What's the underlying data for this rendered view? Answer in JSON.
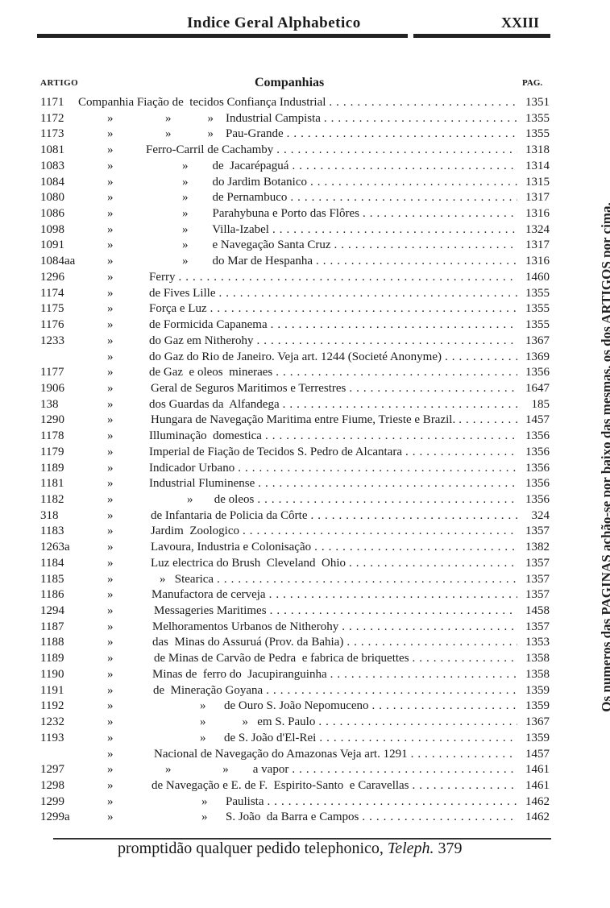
{
  "header": {
    "title": "Indice Geral Alphabetico",
    "page_number": "XXIII"
  },
  "columns": {
    "artigo": "ARTIGO",
    "title": "Companhias",
    "pag": "PAG."
  },
  "rows": [
    {
      "art": "1171",
      "ditto": "",
      "text": "Companhia Fiação de  tecidos Confiança Industrial",
      "page": "1351"
    },
    {
      "art": "1172",
      "ditto": "»",
      "text": "»            »    Industrial Campista",
      "page": "1355"
    },
    {
      "art": "1173",
      "ditto": "»",
      "text": "»            »    Pau-Grande",
      "page": "1355"
    },
    {
      "art": "1081",
      "ditto": "»",
      "text": "Ferro-Carril de Cachamby",
      "page": "1318"
    },
    {
      "art": "1083",
      "ditto": "»",
      "text": "»        de  Jacarépaguá",
      "page": "1314"
    },
    {
      "art": "1084",
      "ditto": "»",
      "text": "»        do Jardim Botanico",
      "page": "1315"
    },
    {
      "art": "1080",
      "ditto": "»",
      "text": "»        de Pernambuco",
      "page": "1317"
    },
    {
      "art": "1086",
      "ditto": "»",
      "text": "»        Parahybuna e Porto das Flôres",
      "page": "1316"
    },
    {
      "art": "1098",
      "ditto": "»",
      "text": "»        Villa-Izabel",
      "page": "1324"
    },
    {
      "art": "1091",
      "ditto": "»",
      "text": "»        e Navegação Santa Cruz",
      "page": "1317"
    },
    {
      "art": "1084aa",
      "ditto": "»",
      "text": "»        do Mar de Hespanha",
      "page": "1316"
    },
    {
      "art": "1296",
      "ditto": "»",
      "text": "Ferry",
      "page": "1460"
    },
    {
      "art": "1174",
      "ditto": "»",
      "text": "de Fives Lille",
      "page": "1355"
    },
    {
      "art": "1175",
      "ditto": "»",
      "text": "Força e Luz",
      "page": "1355"
    },
    {
      "art": "1176",
      "ditto": "»",
      "text": "de Formicida Capanema",
      "page": "1355"
    },
    {
      "art": "1233",
      "ditto": "»",
      "text": "do Gaz em Nitherohy",
      "page": "1367"
    },
    {
      "art": "",
      "ditto": "»",
      "text": "do Gaz do Rio de Janeiro. Veja art. 1244 (Societé Anonyme)",
      "page": "1369"
    },
    {
      "art": "1177",
      "ditto": "»",
      "text": "de Gaz  e oleos  mineraes",
      "page": "1356"
    },
    {
      "art": "1906",
      "ditto": "»",
      "text": "Geral de Seguros Maritimos e Terrestres",
      "page": "1647"
    },
    {
      "art": "138",
      "ditto": "»",
      "text": "dos Guardas da  Alfandega",
      "page": "185"
    },
    {
      "art": "1290",
      "ditto": "»",
      "text": "Hungara de Navegação Maritima entre Fiume, Trieste e Brazil.",
      "page": "1457"
    },
    {
      "art": "1178",
      "ditto": "»",
      "text": "Illuminação  domestica",
      "page": "1356"
    },
    {
      "art": "1179",
      "ditto": "»",
      "text": "Imperial de Fiação de Tecidos S. Pedro de Alcantara",
      "page": "1356"
    },
    {
      "art": "1189",
      "ditto": "»",
      "text": "Indicador Urbano",
      "page": "1356"
    },
    {
      "art": "1181",
      "ditto": "»",
      "text": "Industrial Fluminense",
      "page": "1356"
    },
    {
      "art": "1182",
      "ditto": "»",
      "text": "»       de oleos",
      "page": "1356"
    },
    {
      "art": "318",
      "ditto": "»",
      "text": "de Infantaria de Policia da Côrte",
      "page": "324"
    },
    {
      "art": "1183",
      "ditto": "»",
      "text": "Jardim  Zoologico",
      "page": "1357"
    },
    {
      "art": "1263a",
      "ditto": "»",
      "text": "Lavoura, Industria e Colonisação",
      "page": "1382"
    },
    {
      "art": "1184",
      "ditto": "»",
      "text": "Luz electrica do Brush  Cleveland  Ohio",
      "page": "1357"
    },
    {
      "art": "1185",
      "ditto": "»",
      "text": "»   Stearica",
      "page": "1357"
    },
    {
      "art": "1186",
      "ditto": "»",
      "text": "Manufactora de cerveja",
      "page": "1357"
    },
    {
      "art": "1294",
      "ditto": "»",
      "text": "Messageries Maritimes",
      "page": "1458"
    },
    {
      "art": "1187",
      "ditto": "»",
      "text": "Melhoramentos Urbanos de Nitherohy",
      "page": "1357"
    },
    {
      "art": "1188",
      "ditto": "»",
      "text": "das  Minas do Assuruá (Prov. da Bahia)",
      "page": "1353"
    },
    {
      "art": "1189",
      "ditto": "»",
      "text": "de Minas de Carvão de Pedra  e fabrica de briquettes",
      "page": "1358"
    },
    {
      "art": "1190",
      "ditto": "»",
      "text": "Minas de  ferro do  Jacupiranguinha",
      "page": "1358"
    },
    {
      "art": "1191",
      "ditto": "»",
      "text": "de  Mineração Goyana",
      "page": "1359"
    },
    {
      "art": "1192",
      "ditto": "»",
      "text": "»      de Ouro S. João Nepomuceno",
      "page": "1359"
    },
    {
      "art": "1232",
      "ditto": "»",
      "text": "»            »   em S. Paulo",
      "page": "1367"
    },
    {
      "art": "1193",
      "ditto": "»",
      "text": "»      de S. João d'El-Rei",
      "page": "1359"
    },
    {
      "art": "",
      "ditto": "»",
      "text": "Nacional de Navegação do Amazonas Veja art. 1291",
      "page": "1457"
    },
    {
      "art": "1297",
      "ditto": "»",
      "text": "»                 »        a vapor",
      "page": "1461"
    },
    {
      "art": "1298",
      "ditto": "»",
      "text": "de Navegação e E. de F.  Espirito-Santo  e Caravellas",
      "page": "1461"
    },
    {
      "art": "1299",
      "ditto": "»",
      "text": "»      Paulista",
      "page": "1462"
    },
    {
      "art": "1299a",
      "ditto": "»",
      "text": "»      S. João  da Barra e Campos",
      "page": "1462"
    }
  ],
  "footer": {
    "text": "promptidão qualquer  pedido telephonico,",
    "italic": "Teleph.",
    "number": "379"
  },
  "side_note": "Os numeros das PAGINAS achão-se por baixo das mesmas, os dos ARTIGOS por cima."
}
